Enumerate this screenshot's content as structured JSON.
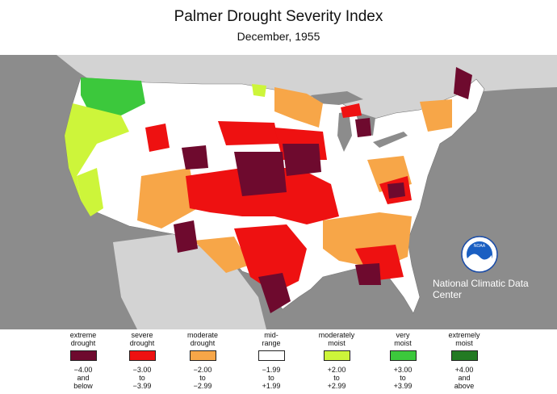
{
  "title": "Palmer Drought Severity Index",
  "subtitle": "December, 1955",
  "credit": "National Climatic Data Center",
  "logo_text": "NOAA",
  "colors": {
    "extreme_drought": "#6e0a2e",
    "severe_drought": "#ee1111",
    "moderate_drought": "#f7a648",
    "mid_range": "#ffffff",
    "moderately_moist": "#cdf53a",
    "very_moist": "#3cc83c",
    "extremely_moist": "#237a23",
    "ocean": "#8c8c8c",
    "land_outside": "#d3d3d3"
  },
  "legend": [
    {
      "label": "extreme\ndrought",
      "range": "−4.00\nand\nbelow",
      "color": "#6e0a2e"
    },
    {
      "label": "severe\ndrought",
      "range": "−3.00\nto\n−3.99",
      "color": "#ee1111"
    },
    {
      "label": "moderate\ndrought",
      "range": "−2.00\nto\n−2.99",
      "color": "#f7a648"
    },
    {
      "label": "mid-\nrange",
      "range": "−1.99\nto\n+1.99",
      "color": "#ffffff"
    },
    {
      "label": "moderately\nmoist",
      "range": "+2.00\nto\n+2.99",
      "color": "#cdf53a"
    },
    {
      "label": "very\nmoist",
      "range": "+3.00\nto\n+3.99",
      "color": "#3cc83c"
    },
    {
      "label": "extremely\nmoist",
      "range": "+4.00\nand\nabove",
      "color": "#237a23"
    }
  ]
}
